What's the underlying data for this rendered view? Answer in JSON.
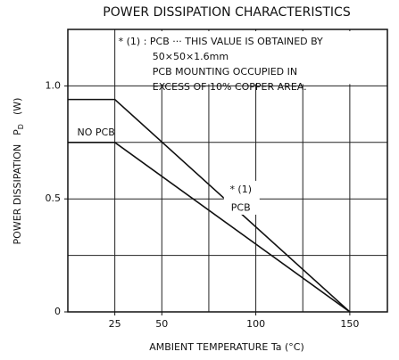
{
  "chart_data": {
    "type": "line",
    "title": "POWER DISSIPATION CHARACTERISTICS",
    "x_label": "AMBIENT TEMPERATURE   Ta   (°C)",
    "y_label": {
      "text": "POWER DISSIPATION",
      "symbol": "P",
      "subscript": "D",
      "unit": "(W)"
    },
    "series": [
      {
        "name": "PCB",
        "color": "#111111",
        "x": [
          0,
          25,
          150
        ],
        "values": [
          0.94,
          0.94,
          0
        ]
      },
      {
        "name": "NO PCB",
        "color": "#111111",
        "x": [
          0,
          25,
          150
        ],
        "values": [
          0.75,
          0.75,
          0
        ]
      }
    ],
    "series_labels": {
      "no_pcb": "NO PCB",
      "pcb_note": "* (1)",
      "pcb": "PCB"
    },
    "annotation": [
      "* (1) : PCB ··· THIS VALUE IS OBTAINED BY",
      "50×50×1.6mm",
      "PCB MOUNTING OCCUPIED IN",
      "EXCESS OF 10% COPPER AREA."
    ],
    "xlim": [
      0,
      170
    ],
    "ylim": [
      0,
      1.25
    ],
    "xticks": [
      25,
      50,
      100,
      150
    ],
    "yticks": [
      0,
      0.5,
      {
        "value": 1,
        "label": "1.0"
      }
    ],
    "xgrid": [
      25,
      50,
      75,
      100,
      125,
      150
    ],
    "ygrid": [
      0.25,
      0.5,
      0.75,
      1
    ],
    "grid": true
  }
}
